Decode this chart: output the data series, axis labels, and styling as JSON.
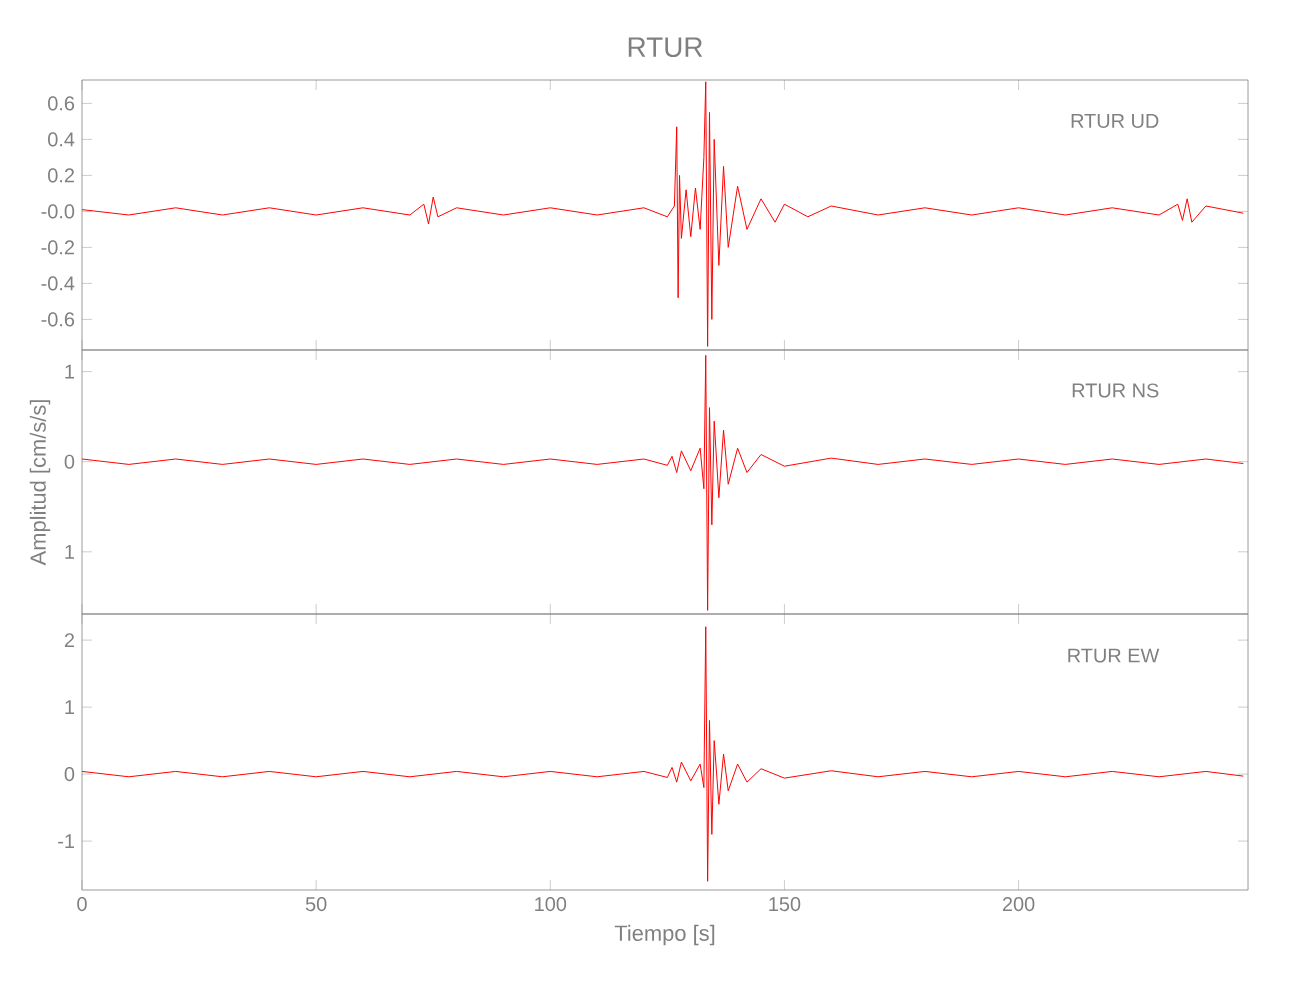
{
  "chart_data": [
    {
      "type": "line",
      "title": "RTUR",
      "annotations": [
        "RTUR   UD"
      ],
      "xlim": [
        0,
        249
      ],
      "xticks": [
        0,
        50,
        100,
        150,
        200
      ],
      "ylim": [
        -0.77,
        0.73
      ],
      "yticks": [
        -0.6,
        -0.4,
        -0.2,
        {
          "value": 0,
          "label": "-0.0"
        },
        0.2,
        0.4,
        0.6
      ],
      "tick_labels": "y",
      "x": [
        0,
        10,
        20,
        30,
        40,
        50,
        60,
        70,
        73,
        74,
        75,
        76,
        80,
        90,
        100,
        110,
        120,
        125,
        126.5,
        127,
        127.3,
        127.6,
        128,
        129,
        130,
        131,
        132,
        132.8,
        133.2,
        133.6,
        134,
        134.5,
        135,
        136,
        137,
        138,
        140,
        142,
        145,
        148,
        150,
        155,
        160,
        170,
        180,
        190,
        200,
        210,
        220,
        230,
        234,
        235,
        236,
        237,
        240,
        248
      ],
      "series": [
        {
          "color": "#ff0000",
          "values": [
            0.01,
            -0.02,
            0.02,
            -0.02,
            0.02,
            -0.02,
            0.02,
            -0.02,
            0.04,
            -0.07,
            0.08,
            -0.03,
            0.02,
            -0.02,
            0.02,
            -0.02,
            0.02,
            -0.03,
            0.03,
            0.47,
            -0.48,
            0.2,
            -0.15,
            0.12,
            -0.14,
            0.13,
            -0.1,
            0.3,
            0.72,
            -0.75,
            0.55,
            -0.6,
            0.4,
            -0.3,
            0.25,
            -0.2,
            0.14,
            -0.1,
            0.07,
            -0.06,
            0.04,
            -0.03,
            0.03,
            -0.02,
            0.02,
            -0.02,
            0.02,
            -0.02,
            0.02,
            -0.02,
            0.04,
            -0.05,
            0.07,
            -0.06,
            0.03,
            -0.01
          ]
        }
      ]
    },
    {
      "type": "line",
      "ylabel": "Amplitud [cm/s/s]",
      "annotations": [
        "RTUR   NS"
      ],
      "xlim": [
        0,
        249
      ],
      "xticks": [
        0,
        50,
        100,
        150,
        200
      ],
      "ylim": [
        -1.69,
        1.24
      ],
      "yticks": [
        {
          "value": -1,
          "label": "1"
        },
        0,
        1
      ],
      "tick_labels": "y",
      "x": [
        0,
        10,
        20,
        30,
        40,
        50,
        60,
        70,
        80,
        90,
        100,
        110,
        120,
        125,
        126,
        127,
        128,
        130,
        132,
        132.8,
        133.2,
        133.6,
        134,
        134.5,
        135,
        136,
        137,
        138,
        140,
        142,
        145,
        150,
        160,
        170,
        180,
        190,
        200,
        210,
        220,
        230,
        240,
        248
      ],
      "series": [
        {
          "color": "#ff0000",
          "values": [
            0.03,
            -0.03,
            0.03,
            -0.03,
            0.03,
            -0.03,
            0.03,
            -0.03,
            0.03,
            -0.03,
            0.03,
            -0.03,
            0.03,
            -0.04,
            0.06,
            -0.12,
            0.12,
            -0.1,
            0.15,
            -0.3,
            1.18,
            -1.65,
            0.6,
            -0.7,
            0.45,
            -0.4,
            0.35,
            -0.25,
            0.15,
            -0.12,
            0.08,
            -0.05,
            0.04,
            -0.03,
            0.03,
            -0.03,
            0.03,
            -0.03,
            0.03,
            -0.03,
            0.03,
            -0.02
          ]
        }
      ]
    },
    {
      "type": "line",
      "xlabel": "Tiempo [s]",
      "annotations": [
        "RTUR   EW"
      ],
      "xlim": [
        0,
        249
      ],
      "xticks": [
        0,
        50,
        100,
        150,
        200
      ],
      "ylim": [
        -1.73,
        2.39
      ],
      "yticks": [
        -1,
        0,
        1,
        2
      ],
      "x": [
        0,
        10,
        20,
        30,
        40,
        50,
        60,
        70,
        80,
        90,
        100,
        110,
        120,
        125,
        126,
        127,
        128,
        130,
        132,
        132.8,
        133.2,
        133.6,
        134,
        134.5,
        135,
        136,
        137,
        138,
        140,
        142,
        145,
        150,
        160,
        170,
        180,
        190,
        200,
        210,
        220,
        230,
        240,
        248
      ],
      "series": [
        {
          "color": "#ff0000",
          "values": [
            0.04,
            -0.04,
            0.04,
            -0.04,
            0.04,
            -0.04,
            0.04,
            -0.04,
            0.04,
            -0.04,
            0.04,
            -0.04,
            0.04,
            -0.05,
            0.1,
            -0.12,
            0.18,
            -0.1,
            0.15,
            -0.2,
            2.2,
            -1.6,
            0.8,
            -0.9,
            0.5,
            -0.45,
            0.3,
            -0.25,
            0.15,
            -0.12,
            0.08,
            -0.06,
            0.05,
            -0.04,
            0.04,
            -0.04,
            0.04,
            -0.04,
            0.04,
            -0.04,
            0.04,
            -0.03
          ]
        }
      ]
    }
  ]
}
